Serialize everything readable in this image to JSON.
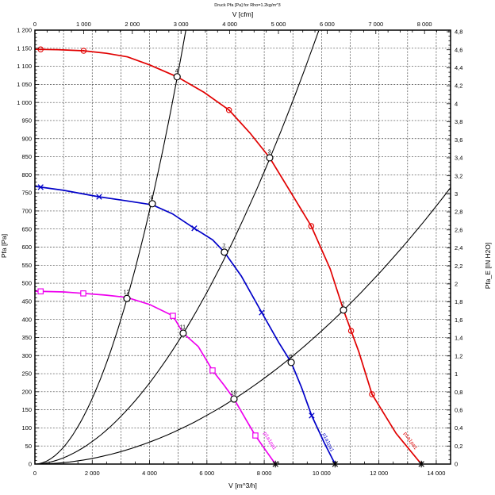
{
  "chart_data": {
    "type": "line",
    "title": "Druck Pfa [Pa] for Rho=1.2kg/m^3",
    "grid": "dashed-both-axes",
    "legend": "none",
    "axes": {
      "bottom": {
        "label": "V [m^3/h]",
        "min": 0,
        "max": 14500,
        "grid_step": 1000,
        "minor_step": 500,
        "ticks": [
          {
            "v": 0,
            "t": "0"
          },
          {
            "v": 2000,
            "t": "2 000"
          },
          {
            "v": 4000,
            "t": "4 000"
          },
          {
            "v": 6000,
            "t": "6 000"
          },
          {
            "v": 8000,
            "t": "8 000"
          },
          {
            "v": 10000,
            "t": "10 000"
          },
          {
            "v": 12000,
            "t": "12 000"
          },
          {
            "v": 14000,
            "t": "14 000"
          }
        ]
      },
      "top": {
        "label": "V [cfm]",
        "unit_to_bottom": 1.699,
        "minor_step": 250,
        "ticks": [
          {
            "v": 0,
            "t": "0"
          },
          {
            "v": 1000,
            "t": "1 000"
          },
          {
            "v": 2000,
            "t": "2 000"
          },
          {
            "v": 3000,
            "t": "3 000"
          },
          {
            "v": 4000,
            "t": "4 000"
          },
          {
            "v": 5000,
            "t": "5 000"
          },
          {
            "v": 6000,
            "t": "6 000"
          },
          {
            "v": 7000,
            "t": "7 000"
          },
          {
            "v": 8000,
            "t": "8 000"
          }
        ]
      },
      "left": {
        "label": "Pfa [Pa]",
        "min": 0,
        "max": 1200,
        "grid_step": 50,
        "minor_step": 10,
        "ticks": [
          {
            "v": 0,
            "t": "0"
          },
          {
            "v": 50,
            "t": "50"
          },
          {
            "v": 100,
            "t": "100"
          },
          {
            "v": 150,
            "t": "150"
          },
          {
            "v": 200,
            "t": "200"
          },
          {
            "v": 250,
            "t": "250"
          },
          {
            "v": 300,
            "t": "300"
          },
          {
            "v": 350,
            "t": "350"
          },
          {
            "v": 400,
            "t": "400"
          },
          {
            "v": 450,
            "t": "450"
          },
          {
            "v": 500,
            "t": "500"
          },
          {
            "v": 550,
            "t": "550"
          },
          {
            "v": 600,
            "t": "600"
          },
          {
            "v": 650,
            "t": "650"
          },
          {
            "v": 700,
            "t": "700"
          },
          {
            "v": 750,
            "t": "750"
          },
          {
            "v": 800,
            "t": "800"
          },
          {
            "v": 850,
            "t": "850"
          },
          {
            "v": 900,
            "t": "900"
          },
          {
            "v": 950,
            "t": "950"
          },
          {
            "v": 1000,
            "t": "1 000"
          },
          {
            "v": 1050,
            "t": "1 050"
          },
          {
            "v": 1100,
            "t": "1 100"
          },
          {
            "v": 1150,
            "t": "1 150"
          },
          {
            "v": 1200,
            "t": "1 200"
          }
        ]
      },
      "right": {
        "label": "Pfa_E [IN H2O]",
        "unit_to_left": 249.089,
        "minor_step": 0.05,
        "ticks": [
          {
            "v": 0,
            "t": "0"
          },
          {
            "v": 0.2,
            "t": "0,2"
          },
          {
            "v": 0.4,
            "t": "0,4"
          },
          {
            "v": 0.6,
            "t": "0,6"
          },
          {
            "v": 0.8,
            "t": "0,8"
          },
          {
            "v": 1,
            "t": "1"
          },
          {
            "v": 1.2,
            "t": "1,2"
          },
          {
            "v": 1.4,
            "t": "1,4"
          },
          {
            "v": 1.6,
            "t": "1,6"
          },
          {
            "v": 1.8,
            "t": "1,8"
          },
          {
            "v": 2,
            "t": "2"
          },
          {
            "v": 2.2,
            "t": "2,2"
          },
          {
            "v": 2.4,
            "t": "2,4"
          },
          {
            "v": 2.6,
            "t": "2,6"
          },
          {
            "v": 2.8,
            "t": "2,8"
          },
          {
            "v": 3,
            "t": "3"
          },
          {
            "v": 3.2,
            "t": "3,2"
          },
          {
            "v": 3.4,
            "t": "3,4"
          },
          {
            "v": 3.6,
            "t": "3,6"
          },
          {
            "v": 3.8,
            "t": "3,8"
          },
          {
            "v": 4,
            "t": "4"
          },
          {
            "v": 4.2,
            "t": "4,2"
          },
          {
            "v": 4.4,
            "t": "4,4"
          },
          {
            "v": 4.6,
            "t": "4,6"
          },
          {
            "v": 4.8,
            "t": "4,8"
          }
        ]
      }
    },
    "series": [
      {
        "name": "fan-curve-high-speed",
        "color": "#e10000",
        "marker": "circle-dot",
        "points": [
          [
            0,
            1147
          ],
          [
            800,
            1146
          ],
          [
            1700,
            1143
          ],
          [
            2500,
            1136
          ],
          [
            3230,
            1126
          ],
          [
            4000,
            1104
          ],
          [
            4960,
            1071
          ],
          [
            5900,
            1028
          ],
          [
            6770,
            979
          ],
          [
            7500,
            916
          ],
          [
            8190,
            847
          ],
          [
            9000,
            742
          ],
          [
            9640,
            658
          ],
          [
            10300,
            540
          ],
          [
            10763,
            426
          ],
          [
            11300,
            310
          ],
          [
            11760,
            193
          ],
          [
            12600,
            85
          ],
          [
            13480,
            0
          ]
        ],
        "marker_v": [
          200,
          1700,
          6770,
          9640,
          11030,
          11760
        ],
        "end_label": {
          "text": "p1a1pa1",
          "v": 13060,
          "p": 62,
          "angle": 55
        }
      },
      {
        "name": "fan-curve-mid-speed",
        "color": "#0000c8",
        "marker": "x",
        "points": [
          [
            0,
            768
          ],
          [
            1000,
            757
          ],
          [
            2240,
            739
          ],
          [
            3200,
            728
          ],
          [
            4095,
            717
          ],
          [
            4800,
            692
          ],
          [
            5560,
            652
          ],
          [
            6200,
            620
          ],
          [
            6610,
            586
          ],
          [
            7200,
            520
          ],
          [
            7913,
            419
          ],
          [
            8500,
            337
          ],
          [
            8940,
            281
          ],
          [
            9300,
            212
          ],
          [
            9656,
            134
          ],
          [
            10100,
            58
          ],
          [
            10470,
            0
          ]
        ],
        "marker_v": [
          200,
          2240,
          5560,
          7913,
          9656
        ],
        "end_label": {
          "text": "p1a1pa1",
          "v": 10180,
          "p": 58,
          "angle": 64
        }
      },
      {
        "name": "fan-curve-low-speed",
        "color": "#ee00ee",
        "marker": "square",
        "points": [
          [
            0,
            478
          ],
          [
            1000,
            476
          ],
          [
            1688,
            472
          ],
          [
            2500,
            467
          ],
          [
            3210,
            461
          ],
          [
            4012,
            441
          ],
          [
            4814,
            410
          ],
          [
            5172,
            362
          ],
          [
            5700,
            325
          ],
          [
            6197,
            259
          ],
          [
            6600,
            218
          ],
          [
            6945,
            180
          ],
          [
            7400,
            118
          ],
          [
            7691,
            79
          ],
          [
            8050,
            38
          ],
          [
            8390,
            0
          ]
        ],
        "marker_v": [
          200,
          1688,
          4814,
          6197,
          7691
        ],
        "end_label": {
          "text": "p1a1pa1",
          "v": 8150,
          "p": 62,
          "angle": 58
        }
      }
    ],
    "system_curves": [
      {
        "name": "system-curve-steep",
        "k": 6.53e-05,
        "n": 1.952,
        "v_end": 5266
      },
      {
        "name": "system-curve-middle",
        "k": 4.907e-05,
        "n": 1.849,
        "v_end": 9897
      },
      {
        "name": "system-curve-shallow",
        "k": 4.988e-06,
        "n": 1.967,
        "v_end": 14500
      }
    ],
    "operating_points": [
      {
        "v": 4960,
        "p": 1071,
        "label": "4"
      },
      {
        "v": 4095,
        "p": 720,
        "label": "8"
      },
      {
        "v": 3210,
        "p": 458,
        "label": "12"
      },
      {
        "v": 8190,
        "p": 847,
        "label": "3"
      },
      {
        "v": 6610,
        "p": 586,
        "label": "7"
      },
      {
        "v": 5172,
        "p": 362,
        "label": "11"
      },
      {
        "v": 10763,
        "p": 426,
        "label": "2"
      },
      {
        "v": 8940,
        "p": 281,
        "label": "6"
      },
      {
        "v": 6945,
        "p": 180,
        "label": "10"
      }
    ],
    "end_markers": [
      {
        "v": 8390
      },
      {
        "v": 10470
      },
      {
        "v": 13480
      }
    ],
    "colors": {
      "grid": "#444444",
      "axis": "#000000",
      "background": "#ffffff"
    }
  }
}
